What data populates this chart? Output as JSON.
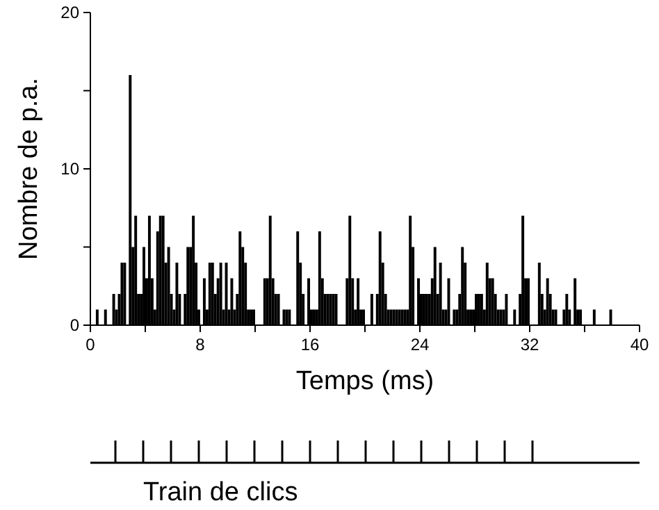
{
  "chart_data": {
    "type": "histogram",
    "xlabel": "Temps (ms)",
    "ylabel": "Nombre de p.a.",
    "color": "#000000",
    "bins": [
      0,
      0.2,
      0.4,
      0.6,
      0.8,
      1,
      1.2,
      1.4,
      1.6,
      1.8,
      2,
      2.2,
      2.4,
      2.6,
      2.8,
      3,
      3.2,
      3.4,
      3.6,
      3.8,
      4,
      4.2,
      4.4,
      4.6,
      4.8,
      5,
      5.2,
      5.4,
      5.6,
      5.8,
      6,
      6.2,
      6.4,
      6.6,
      6.8,
      7,
      7.2,
      7.4,
      7.6,
      7.8,
      8,
      8.2,
      8.4,
      8.6,
      8.8,
      9,
      9.2,
      9.4,
      9.6,
      9.8,
      10,
      10.2,
      10.4,
      10.6,
      10.8,
      11,
      11.2,
      11.4,
      11.6,
      11.8,
      12,
      12.2,
      12.4,
      12.6,
      12.8,
      13,
      13.2,
      13.4,
      13.6,
      13.8,
      14,
      14.2,
      14.4,
      14.6,
      14.8,
      15,
      15.2,
      15.4,
      15.6,
      15.8,
      16,
      16.2,
      16.4,
      16.6,
      16.8,
      17,
      17.2,
      17.4,
      17.6,
      17.8,
      18,
      18.2,
      18.4,
      18.6,
      18.8,
      19,
      19.2,
      19.4,
      19.6,
      19.8,
      20,
      20.2,
      20.4,
      20.6,
      20.8,
      21,
      21.2,
      21.4,
      21.6,
      21.8,
      22,
      22.2,
      22.4,
      22.6,
      22.8,
      23,
      23.2,
      23.4,
      23.6,
      23.8,
      24,
      24.2,
      24.4,
      24.6,
      24.8,
      25,
      25.2,
      25.4,
      25.6,
      25.8,
      26,
      26.2,
      26.4,
      26.6,
      26.8,
      27,
      27.2,
      27.4,
      27.6,
      27.8,
      28,
      28.2,
      28.4,
      28.6,
      28.8,
      29,
      29.2,
      29.4,
      29.6,
      29.8,
      30,
      30.2,
      30.4,
      30.6,
      30.8,
      31,
      31.2,
      31.4,
      31.6,
      31.8,
      32,
      32.2,
      32.4,
      32.6,
      32.8,
      33,
      33.2,
      33.4,
      33.6,
      33.8,
      34,
      34.2,
      34.4,
      34.6,
      34.8,
      35,
      35.2,
      35.4,
      35.6,
      35.8,
      36,
      36.2,
      36.4,
      36.6,
      36.8,
      37,
      37.2,
      37.4,
      37.6,
      37.8,
      38,
      38.2,
      38.4,
      38.6,
      38.8,
      39,
      39.2,
      39.4,
      39.6,
      39.8,
      40
    ],
    "values": [
      0,
      0,
      1,
      0,
      0,
      1,
      0,
      0,
      2,
      1,
      2,
      4,
      4,
      0,
      16,
      5,
      7,
      2,
      2,
      5,
      3,
      7,
      3,
      1,
      6,
      7,
      7,
      4,
      5,
      2,
      1,
      4,
      2,
      0,
      2,
      5,
      5,
      7,
      4,
      1,
      0,
      3,
      1,
      4,
      4,
      2,
      3,
      4,
      1,
      4,
      1,
      3,
      1,
      2,
      6,
      5,
      4,
      1,
      1,
      1,
      0,
      0,
      0,
      3,
      3,
      7,
      3,
      2,
      2,
      0,
      1,
      1,
      1,
      0,
      0,
      6,
      4,
      2,
      0,
      3,
      1,
      1,
      1,
      6,
      3,
      2,
      2,
      2,
      2,
      2,
      0,
      0,
      0,
      3,
      7,
      3,
      1,
      3,
      1,
      1,
      0,
      0,
      2,
      0,
      2,
      6,
      4,
      2,
      1,
      1,
      1,
      1,
      1,
      1,
      1,
      1,
      7,
      5,
      0,
      3,
      2,
      2,
      2,
      2,
      3,
      5,
      2,
      4,
      1,
      1,
      3,
      0,
      1,
      1,
      2,
      5,
      4,
      1,
      1,
      1,
      2,
      2,
      2,
      1,
      4,
      3,
      3,
      2,
      1,
      1,
      1,
      2,
      0,
      0,
      1,
      0,
      2,
      7,
      3,
      3,
      0,
      0,
      0,
      4,
      2,
      1,
      3,
      2,
      1,
      1,
      0,
      0,
      1,
      2,
      1,
      0,
      3,
      1,
      1,
      0,
      0,
      0,
      0,
      1,
      0,
      0,
      0,
      0,
      0,
      1,
      0,
      0,
      0,
      0,
      0,
      0,
      0,
      0,
      0,
      0
    ],
    "xlim": [
      0,
      40
    ],
    "ylim": [
      0,
      20
    ],
    "xticks": [
      0,
      {
        "value": 4,
        "label": null
      },
      8,
      {
        "value": 12,
        "label": null
      },
      16,
      {
        "value": 20,
        "label": null
      },
      24,
      {
        "value": 28,
        "label": null
      },
      32,
      {
        "value": 36,
        "label": null
      },
      40
    ],
    "yticks": [
      0,
      {
        "value": 5,
        "label": null
      },
      10,
      {
        "value": 15,
        "label": null
      },
      20
    ],
    "grid": false,
    "annotations": [
      "Train de clics"
    ]
  }
}
